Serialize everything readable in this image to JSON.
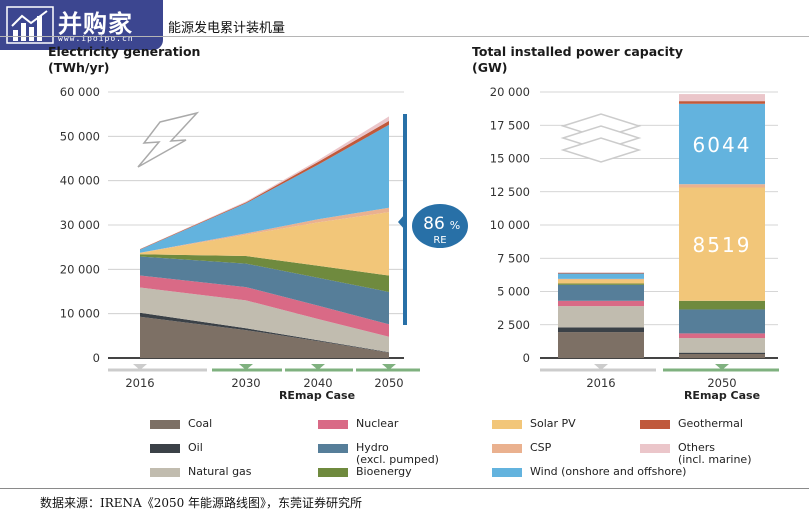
{
  "header": {
    "logo_name": "并购家",
    "logo_url": "www.ipoipo.cn",
    "title": "能源发电累计装机量"
  },
  "colors": {
    "coal": "#7d7065",
    "oil": "#3b4147",
    "natural_gas": "#c1bcaf",
    "nuclear": "#d96a86",
    "hydro": "#567e99",
    "bioenergy": "#6f8a3e",
    "solar_pv": "#f2c679",
    "csp": "#eab18f",
    "wind": "#63b3de",
    "geothermal": "#c0593b",
    "others": "#ebc6ca",
    "re_bar": "#2870a7"
  },
  "legend": [
    {
      "key": "coal",
      "label": "Coal",
      "sub": ""
    },
    {
      "key": "nuclear",
      "label": "Nuclear",
      "sub": ""
    },
    {
      "key": "solar_pv",
      "label": "Solar PV",
      "sub": ""
    },
    {
      "key": "geothermal",
      "label": "Geothermal",
      "sub": ""
    },
    {
      "key": "oil",
      "label": "Oil",
      "sub": ""
    },
    {
      "key": "hydro",
      "label": "Hydro",
      "sub": "(excl. pumped)"
    },
    {
      "key": "csp",
      "label": "CSP",
      "sub": ""
    },
    {
      "key": "others",
      "label": "Others",
      "sub": "(incl. marine)"
    },
    {
      "key": "natural_gas",
      "label": "Natural gas",
      "sub": ""
    },
    {
      "key": "bioenergy",
      "label": "Bioenergy",
      "sub": ""
    },
    {
      "key": "wind",
      "label": "Wind (onshore and offshore)",
      "sub": ""
    }
  ],
  "source": "数据来源：IRENA《2050 年能源路线图》，东莞证券研究所",
  "chart_data": [
    {
      "type": "area",
      "title": "Electricity generation",
      "ylabel": "(TWh/yr)",
      "ylim": [
        0,
        60000
      ],
      "yticks": [
        0,
        10000,
        20000,
        30000,
        40000,
        50000,
        60000
      ],
      "ytick_labels": [
        "0",
        "10 000",
        "20 000",
        "30 000",
        "40 000",
        "50 000",
        "60 000"
      ],
      "x": [
        2016,
        2030,
        2040,
        2050
      ],
      "xtick_labels": [
        "2016",
        "2030",
        "2040",
        "2050"
      ],
      "scenario_label": "REmap Case",
      "annotation": {
        "value": "86",
        "unit": "%",
        "label": "RE"
      },
      "series": [
        {
          "key": "coal",
          "values": [
            9300,
            6300,
            3800,
            1200
          ]
        },
        {
          "key": "oil",
          "values": [
            900,
            400,
            200,
            100
          ]
        },
        {
          "key": "natural_gas",
          "values": [
            5700,
            6300,
            4800,
            3500
          ]
        },
        {
          "key": "nuclear",
          "values": [
            2700,
            3000,
            3000,
            2800
          ]
        },
        {
          "key": "hydro",
          "values": [
            4300,
            5300,
            6300,
            7300
          ]
        },
        {
          "key": "bioenergy",
          "values": [
            500,
            1700,
            2700,
            3700
          ]
        },
        {
          "key": "solar_pv",
          "values": [
            300,
            4800,
            9800,
            14300
          ]
        },
        {
          "key": "csp",
          "values": [
            50,
            300,
            700,
            1000
          ]
        },
        {
          "key": "wind",
          "values": [
            700,
            6800,
            12300,
            18700
          ]
        },
        {
          "key": "geothermal",
          "values": [
            100,
            200,
            600,
            900
          ]
        },
        {
          "key": "others",
          "values": [
            50,
            200,
            400,
            1000
          ]
        }
      ]
    },
    {
      "type": "bar",
      "title": "Total installed power capacity",
      "ylabel": "(GW)",
      "ylim": [
        0,
        20000
      ],
      "yticks": [
        0,
        2500,
        5000,
        7500,
        10000,
        12500,
        15000,
        17500,
        20000
      ],
      "ytick_labels": [
        "0",
        "2 500",
        "5 000",
        "7 500",
        "10 000",
        "12 500",
        "15 000",
        "17 500",
        "20 000"
      ],
      "categories": [
        "2016",
        "2050"
      ],
      "scenario_label": "REmap Case",
      "series": [
        {
          "key": "coal",
          "values": [
            1950,
            300
          ]
        },
        {
          "key": "oil",
          "values": [
            350,
            100
          ]
        },
        {
          "key": "natural_gas",
          "values": [
            1600,
            1100
          ]
        },
        {
          "key": "nuclear",
          "values": [
            400,
            350
          ]
        },
        {
          "key": "hydro",
          "values": [
            1200,
            1800
          ]
        },
        {
          "key": "bioenergy",
          "values": [
            100,
            650
          ]
        },
        {
          "key": "solar_pv",
          "values": [
            300,
            8519
          ]
        },
        {
          "key": "csp",
          "values": [
            50,
            250
          ]
        },
        {
          "key": "wind",
          "values": [
            400,
            6044
          ]
        },
        {
          "key": "geothermal",
          "values": [
            50,
            200
          ]
        },
        {
          "key": "others",
          "values": [
            50,
            530
          ]
        }
      ],
      "data_labels": [
        {
          "key": "wind",
          "category": "2050",
          "text": "6044"
        },
        {
          "key": "solar_pv",
          "category": "2050",
          "text": "8519"
        }
      ]
    }
  ]
}
